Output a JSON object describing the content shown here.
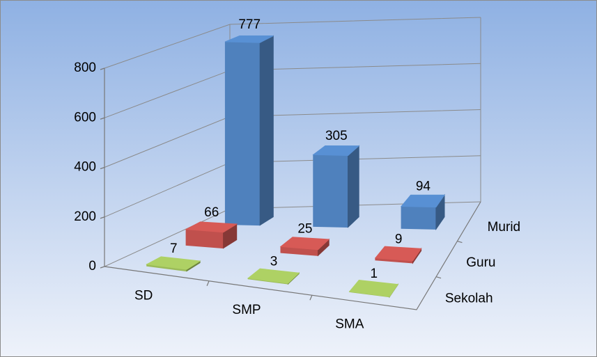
{
  "chart_data": {
    "type": "bar3d",
    "categories": [
      "SD",
      "SMP",
      "SMA"
    ],
    "series": [
      {
        "name": "Murid",
        "color": "#4f81bd",
        "values": [
          777,
          305,
          94
        ]
      },
      {
        "name": "Guru",
        "color": "#c0504d",
        "values": [
          66,
          25,
          9
        ]
      },
      {
        "name": "Sekolah",
        "color": "#9bbb59",
        "values": [
          7,
          3,
          1
        ]
      }
    ],
    "ylim": [
      0,
      800
    ],
    "yticks": [
      0,
      200,
      400,
      600,
      800
    ],
    "grid": true
  }
}
